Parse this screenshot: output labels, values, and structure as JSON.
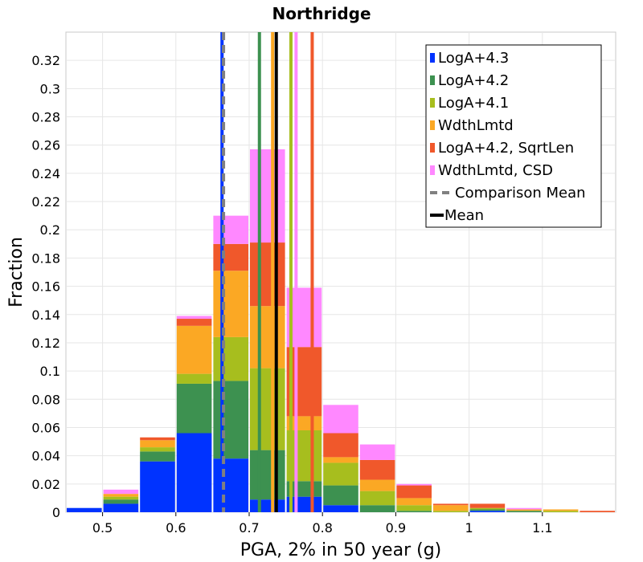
{
  "chart_data": {
    "type": "bar",
    "stacked": true,
    "title": "Northridge",
    "xlabel": "PGA, 2% in 50 year (g)",
    "ylabel": "Fraction",
    "xlim": [
      0.45,
      1.2
    ],
    "ylim": [
      0,
      0.34
    ],
    "xticks": [
      0.5,
      0.6,
      0.7,
      0.8,
      0.9,
      1,
      1.1
    ],
    "xtick_labels": [
      "0.5",
      "0.6",
      "0.7",
      "0.8",
      "0.9",
      "1",
      "1.1"
    ],
    "yticks": [
      0,
      0.02,
      0.04,
      0.06,
      0.08,
      0.1,
      0.12,
      0.14,
      0.16,
      0.18,
      0.2,
      0.22,
      0.24,
      0.26,
      0.28,
      0.3,
      0.32
    ],
    "ytick_labels": [
      "0",
      "0.02",
      "0.04",
      "0.06",
      "0.08",
      "0.1",
      "0.12",
      "0.14",
      "0.16",
      "0.18",
      "0.2",
      "0.22",
      "0.24",
      "0.26",
      "0.28",
      "0.3",
      "0.32"
    ],
    "bin_width": 0.05,
    "bin_centers": [
      0.475,
      0.525,
      0.575,
      0.625,
      0.675,
      0.725,
      0.775,
      0.825,
      0.875,
      0.925,
      0.975,
      1.025,
      1.075,
      1.125,
      1.175
    ],
    "series": [
      {
        "name": "LogA+4.3",
        "color": "#0033ff",
        "values": [
          0.003,
          0.006,
          0.036,
          0.056,
          0.038,
          0.009,
          0.011,
          0.005,
          0.0,
          0.0,
          0.0,
          0.001,
          0.0,
          0.0,
          0.0
        ]
      },
      {
        "name": "LogA+4.2",
        "color": "#3d9150",
        "values": [
          0.0,
          0.003,
          0.007,
          0.035,
          0.055,
          0.035,
          0.011,
          0.014,
          0.005,
          0.001,
          0.0,
          0.001,
          0.001,
          0.0,
          0.0
        ]
      },
      {
        "name": "LogA+4.1",
        "color": "#a7be1e",
        "values": [
          0.0,
          0.002,
          0.003,
          0.007,
          0.031,
          0.058,
          0.036,
          0.016,
          0.01,
          0.004,
          0.001,
          0.001,
          0.0,
          0.001,
          0.0
        ]
      },
      {
        "name": "WdthLmtd",
        "color": "#fba824",
        "values": [
          0.0,
          0.002,
          0.005,
          0.034,
          0.047,
          0.044,
          0.01,
          0.004,
          0.008,
          0.005,
          0.004,
          0.0,
          0.001,
          0.001,
          0.0
        ]
      },
      {
        "name": "LogA+4.2, SqrtLen",
        "color": "#f0582b",
        "values": [
          0.0,
          0.0,
          0.002,
          0.005,
          0.019,
          0.045,
          0.049,
          0.017,
          0.014,
          0.009,
          0.001,
          0.003,
          0.0,
          0.0,
          0.001
        ]
      },
      {
        "name": "WdthLmtd, CSD",
        "color": "#ff88ff",
        "values": [
          0.0,
          0.003,
          0.0,
          0.002,
          0.02,
          0.066,
          0.042,
          0.02,
          0.011,
          0.001,
          0.0,
          0.0,
          0.001,
          0.0,
          0.0
        ]
      }
    ],
    "series_means": [
      0.663,
      0.714,
      0.757,
      0.732,
      0.786,
      0.764
    ],
    "comparison_mean": {
      "name": "Comparison Mean",
      "value": 0.665,
      "color": "#808080",
      "style": "dashed"
    },
    "mean": {
      "name": "Mean",
      "value": 0.737,
      "color": "#000000"
    },
    "legend_position": "top-right",
    "grid": true
  }
}
